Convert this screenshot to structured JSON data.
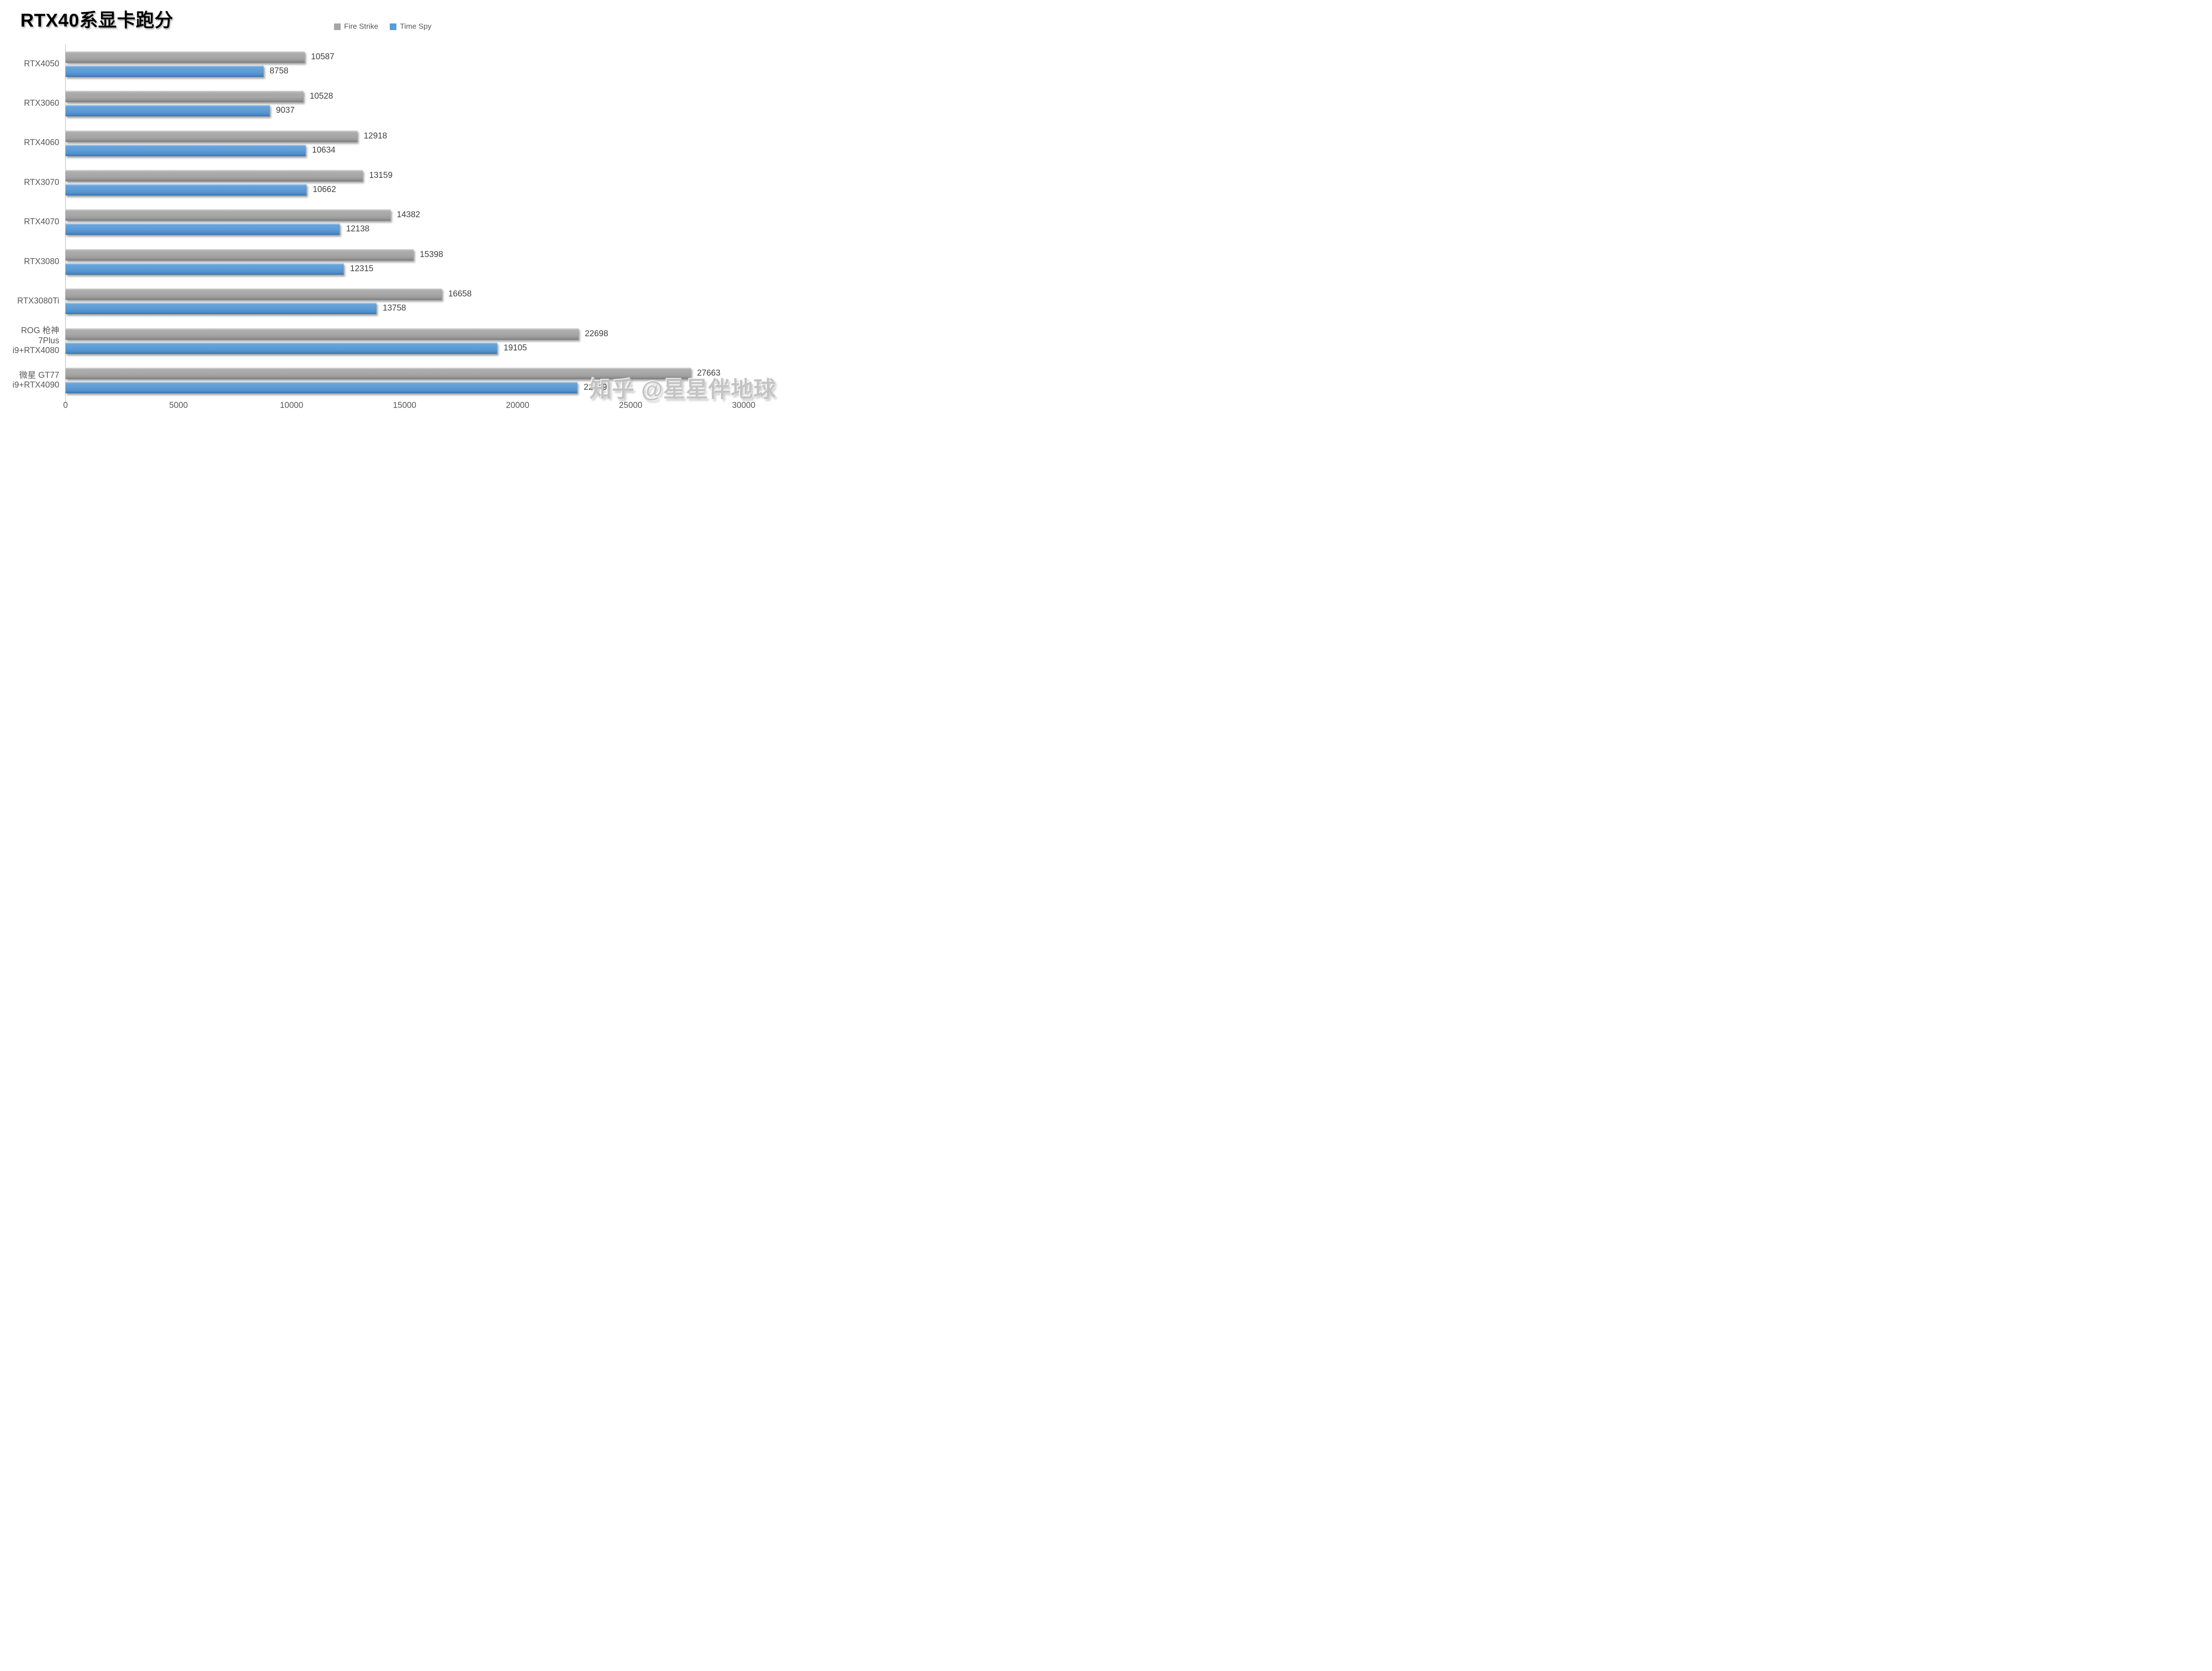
{
  "title": "RTX40系显卡跑分",
  "watermark": "知乎 @星星伴地球",
  "colors": {
    "fire_strike": "#a6a6a6",
    "time_spy": "#5b9bd5",
    "axis_line": "#d6d6d6",
    "label_text": "#595959",
    "value_text": "#3f3f3f",
    "watermark_text": "#c3c3c3"
  },
  "chart_data": {
    "type": "bar",
    "orientation": "horizontal",
    "title": "RTX40系显卡跑分",
    "categories": [
      "RTX4050",
      "RTX3060",
      "RTX4060",
      "RTX3070",
      "RTX4070",
      "RTX3080",
      "RTX3080Ti",
      "ROG 枪神7Plus\ni9+RTX4080",
      "微星 GT77\ni9+RTX4090"
    ],
    "series": [
      {
        "name": "Fire Strike",
        "color": "#a6a6a6",
        "values": [
          10587,
          10528,
          12918,
          13159,
          14382,
          15398,
          16658,
          22698,
          27663
        ]
      },
      {
        "name": "Time Spy",
        "color": "#5b9bd5",
        "values": [
          8758,
          9037,
          10634,
          10662,
          12138,
          12315,
          13758,
          19105,
          22649
        ]
      }
    ],
    "xlim": [
      0,
      30000
    ],
    "xticks": [
      0,
      5000,
      10000,
      15000,
      20000,
      25000,
      30000
    ],
    "grid": false,
    "legend_position": "top-center",
    "value_labels": true
  }
}
